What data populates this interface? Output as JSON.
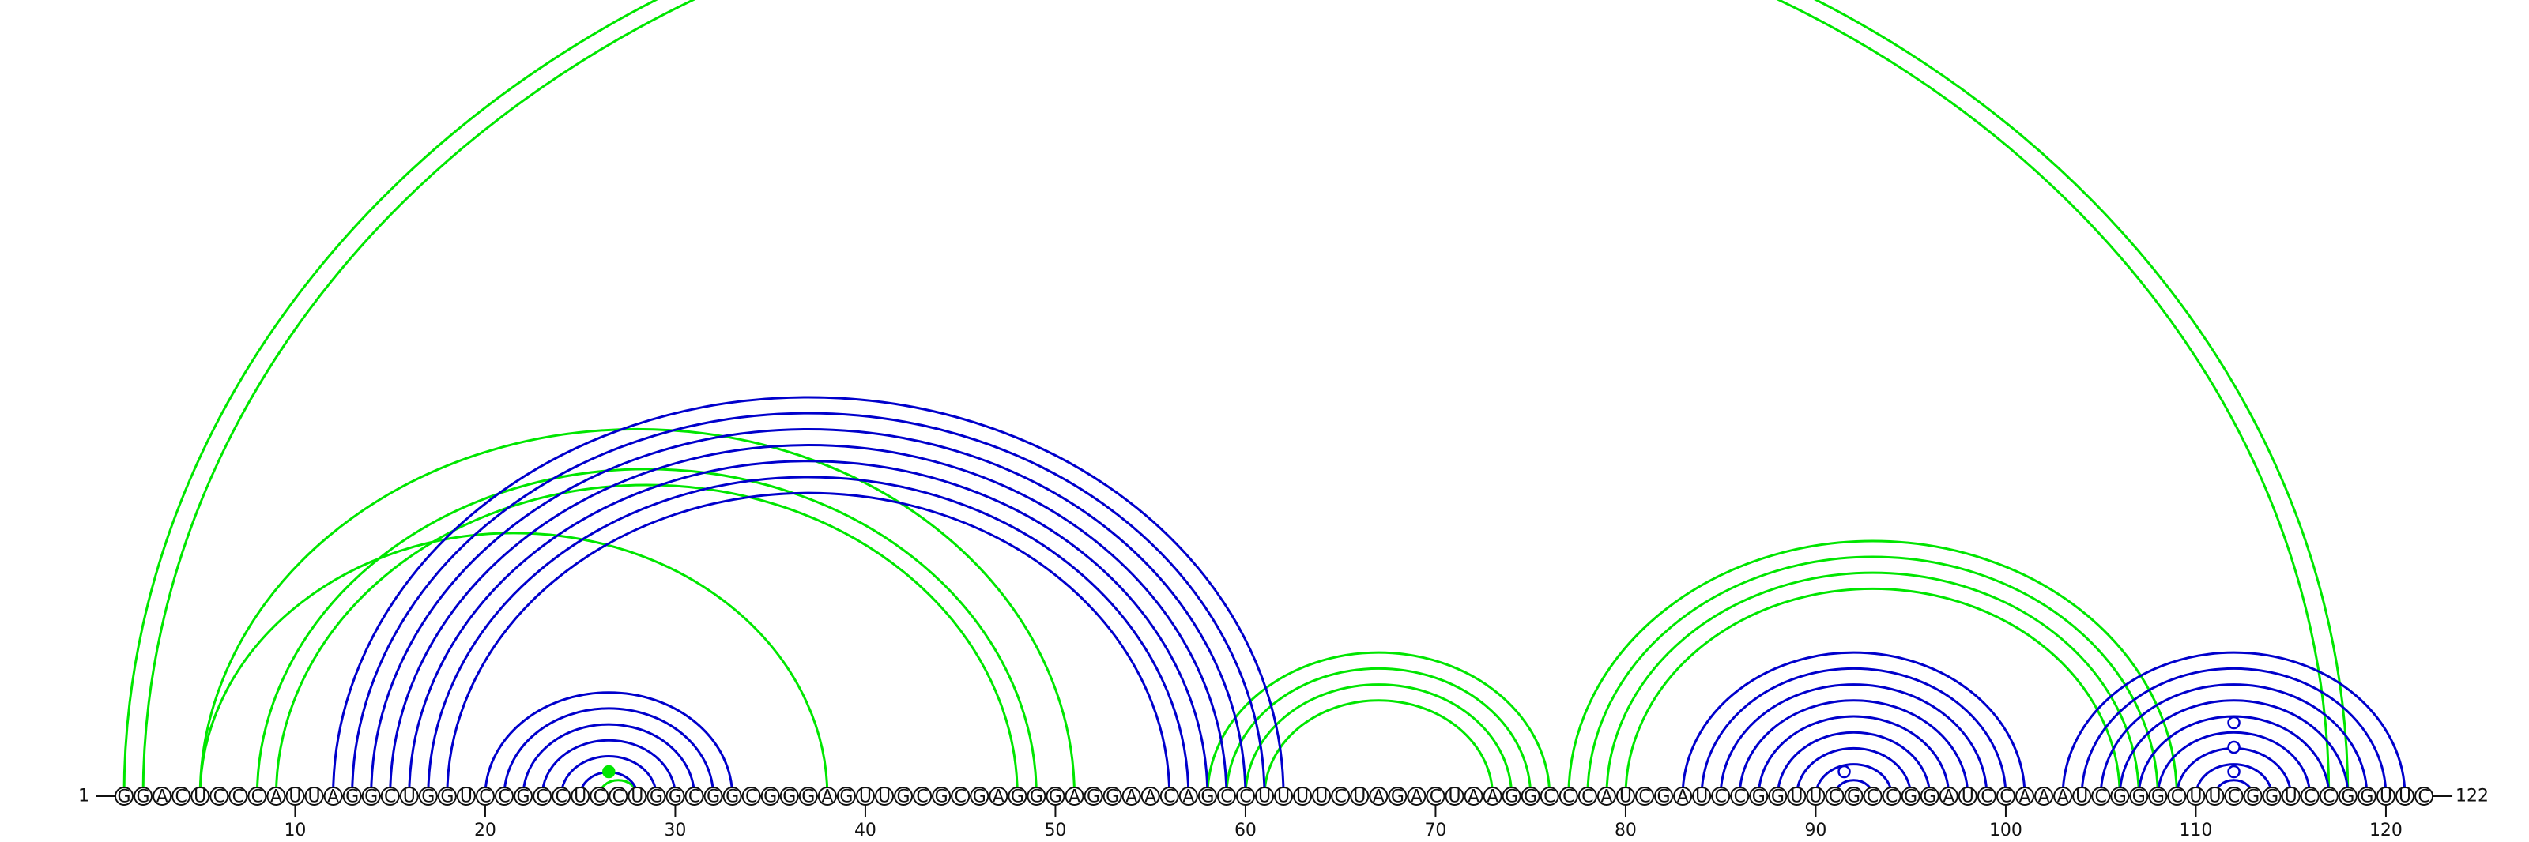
{
  "sequence": "GGACUCCCAUUAGGCUGGUCCGCCUCCUGGCGGCGGGAGUUGCGCGAGGGAGGAACAGCCUUUUCUAGACUAAGGCCCAUCGAUCCGGUUCGCCGGAUCCAAAUCGGGCUUCGGUCCGGUUC",
  "start_label": "1",
  "end_label": "122",
  "ticks": [
    "10",
    "20",
    "30",
    "40",
    "50",
    "60",
    "70",
    "80",
    "90",
    "100",
    "110",
    "120"
  ],
  "tick_positions": [
    10,
    20,
    30,
    40,
    50,
    60,
    70,
    80,
    90,
    100,
    110,
    120
  ],
  "colors": {
    "blue_arcs": "#0000cc",
    "green_arcs": "#00e600",
    "backbone": "#111111"
  },
  "green_arcs": [
    [
      1,
      118
    ],
    [
      2,
      117
    ],
    [
      5,
      51
    ],
    [
      5,
      38
    ],
    [
      8,
      49
    ],
    [
      9,
      48
    ],
    [
      26,
      28
    ],
    [
      58,
      76
    ],
    [
      59,
      75
    ],
    [
      60,
      74
    ],
    [
      61,
      73
    ],
    [
      77,
      109
    ],
    [
      78,
      108
    ],
    [
      79,
      107
    ],
    [
      80,
      106
    ]
  ],
  "blue_arcs": [
    [
      12,
      62
    ],
    [
      13,
      61
    ],
    [
      14,
      60
    ],
    [
      15,
      59
    ],
    [
      16,
      58
    ],
    [
      17,
      57
    ],
    [
      18,
      56
    ],
    [
      20,
      33
    ],
    [
      21,
      32
    ],
    [
      22,
      31
    ],
    [
      23,
      30
    ],
    [
      24,
      29
    ],
    [
      25,
      28
    ],
    [
      83,
      101
    ],
    [
      84,
      100
    ],
    [
      85,
      99
    ],
    [
      86,
      98
    ],
    [
      87,
      97
    ],
    [
      88,
      96
    ],
    [
      89,
      95
    ],
    [
      90,
      94
    ],
    [
      91,
      93
    ],
    [
      103,
      121
    ],
    [
      104,
      120
    ],
    [
      105,
      119
    ],
    [
      106,
      118
    ],
    [
      107,
      117
    ],
    [
      108,
      116
    ],
    [
      109,
      115
    ],
    [
      110,
      114
    ],
    [
      111,
      113
    ]
  ],
  "markers": [
    {
      "pos": 26.5,
      "color": "#00e600",
      "level": 0
    },
    {
      "pos": 91.5,
      "color": "#0000cc",
      "level": 0
    },
    {
      "pos": 112,
      "color": "#0000cc",
      "level": 0
    },
    {
      "pos": 112,
      "color": "#0000cc",
      "level": 1
    },
    {
      "pos": 112,
      "color": "#0000cc",
      "level": 2
    }
  ]
}
